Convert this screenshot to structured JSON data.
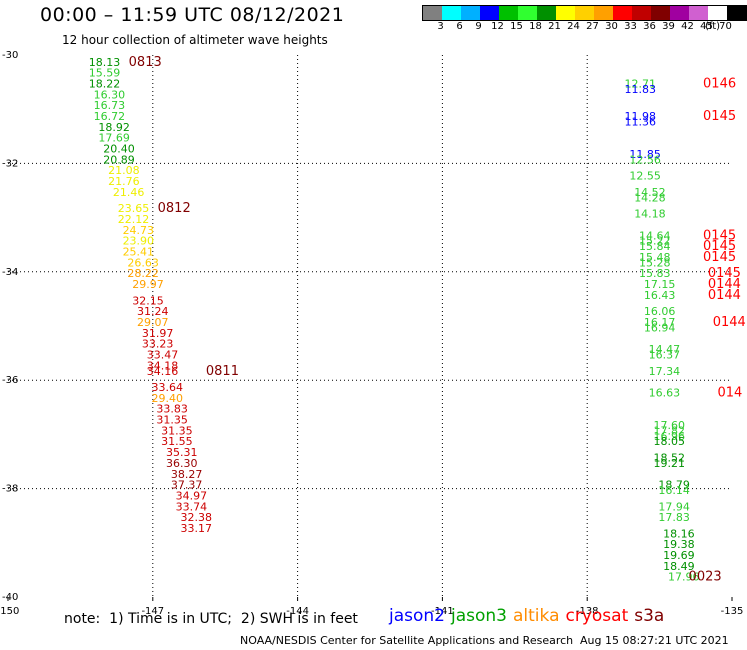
{
  "header": {
    "title": "00:00 – 11:59 UTC 08/12/2021",
    "subtitle": "12 hour collection of altimeter wave heights"
  },
  "colorbar": {
    "colors": [
      "#808080",
      "#00ffff",
      "#00b0ff",
      "#0000ff",
      "#00c000",
      "#30ff30",
      "#009000",
      "#ffff00",
      "#ffd000",
      "#ffa000",
      "#ff0000",
      "#c00000",
      "#800000",
      "#a000a0",
      "#d060d0",
      "#ffffff",
      "#000000"
    ],
    "labels": [
      "3",
      "6",
      "9",
      "12",
      "15",
      "18",
      "21",
      "24",
      "27",
      "30",
      "33",
      "36",
      "39",
      "42",
      "45",
      "70"
    ],
    "unit": "(ft)"
  },
  "footer": {
    "note": "note:  1) Time is in UTC;  2) SWH is in feet",
    "legend": [
      {
        "label": "jason2",
        "color": "#0000ff"
      },
      {
        "label": "jason3",
        "color": "#00a000"
      },
      {
        "label": "altika",
        "color": "#ff8c00"
      },
      {
        "label": "cryosat",
        "color": "#ff0000"
      },
      {
        "label": "s3a",
        "color": "#800000"
      }
    ],
    "credit": "NOAA/NESDIS Center for Satellite Applications and Research",
    "timestamp": "Aug 15 08:27:21 UTC 2021"
  },
  "chart_data": {
    "type": "scatter",
    "title": "00:00 – 11:59 UTC 08/12/2021",
    "subtitle": "12 hour collection of altimeter wave heights",
    "xlim": [
      -150,
      -135
    ],
    "ylim": [
      -40,
      -30
    ],
    "x_ticks": [
      "-150",
      "-147",
      "-144",
      "-141",
      "-138",
      "-135"
    ],
    "y_ticks": [
      "-30",
      "-32",
      "-34",
      "-36",
      "-38",
      "-40"
    ],
    "x_tick_values": [
      -150,
      -147,
      -144,
      -141,
      -138,
      -135
    ],
    "y_tick_values": [
      -30,
      -32,
      -34,
      -36,
      -38,
      -40
    ],
    "grid": true,
    "track_a": [
      {
        "lon": -148.0,
        "lat": -30.2,
        "v": "18.13",
        "c": "#009000"
      },
      {
        "lon": -148.0,
        "lat": -30.4,
        "v": "15.59",
        "c": "#30cc30"
      },
      {
        "lon": -148.0,
        "lat": -30.6,
        "v": "18.22",
        "c": "#009000"
      },
      {
        "lon": -147.9,
        "lat": -30.8,
        "v": "16.30",
        "c": "#30cc30"
      },
      {
        "lon": -147.9,
        "lat": -31.0,
        "v": "16.73",
        "c": "#30cc30"
      },
      {
        "lon": -147.9,
        "lat": -31.2,
        "v": "16.72",
        "c": "#30cc30"
      },
      {
        "lon": -147.8,
        "lat": -31.4,
        "v": "18.92",
        "c": "#009000"
      },
      {
        "lon": -147.8,
        "lat": -31.6,
        "v": "17.69",
        "c": "#30cc30"
      },
      {
        "lon": -147.7,
        "lat": -31.8,
        "v": "20.40",
        "c": "#009000"
      },
      {
        "lon": -147.7,
        "lat": -32.0,
        "v": "20.89",
        "c": "#009000"
      },
      {
        "lon": -147.6,
        "lat": -32.2,
        "v": "21.08",
        "c": "#eeee00"
      },
      {
        "lon": -147.6,
        "lat": -32.4,
        "v": "21.76",
        "c": "#eeee00"
      },
      {
        "lon": -147.5,
        "lat": -32.6,
        "v": "21.46",
        "c": "#eeee00"
      },
      {
        "lon": -147.4,
        "lat": -32.9,
        "v": "23.65",
        "c": "#eeee00"
      },
      {
        "lon": -147.4,
        "lat": -33.1,
        "v": "22.12",
        "c": "#eeee00"
      },
      {
        "lon": -147.3,
        "lat": -33.3,
        "v": "24.73",
        "c": "#ffcc00"
      },
      {
        "lon": -147.3,
        "lat": -33.5,
        "v": "23.90",
        "c": "#eeee00"
      },
      {
        "lon": -147.3,
        "lat": -33.7,
        "v": "25.41",
        "c": "#ffcc00"
      },
      {
        "lon": -147.2,
        "lat": -33.9,
        "v": "26.63",
        "c": "#ffcc00"
      },
      {
        "lon": -147.2,
        "lat": -34.1,
        "v": "28.22",
        "c": "#ffa000"
      },
      {
        "lon": -147.1,
        "lat": -34.3,
        "v": "29.97",
        "c": "#ffa000"
      },
      {
        "lon": -147.1,
        "lat": -34.6,
        "v": "32.15",
        "c": "#cc0000"
      },
      {
        "lon": -147.0,
        "lat": -34.8,
        "v": "31.24",
        "c": "#cc0000"
      },
      {
        "lon": -147.0,
        "lat": -35.0,
        "v": "29.07",
        "c": "#ffa000"
      },
      {
        "lon": -146.9,
        "lat": -35.2,
        "v": "31.97",
        "c": "#cc0000"
      },
      {
        "lon": -146.9,
        "lat": -35.4,
        "v": "33.23",
        "c": "#cc0000"
      },
      {
        "lon": -146.8,
        "lat": -35.6,
        "v": "33.47",
        "c": "#cc0000"
      },
      {
        "lon": -146.8,
        "lat": -35.8,
        "v": "34.18",
        "c": "#cc0000"
      },
      {
        "lon": -146.8,
        "lat": -35.9,
        "v": "34.16",
        "c": "#cc0000"
      },
      {
        "lon": -146.7,
        "lat": -36.2,
        "v": "33.64",
        "c": "#cc0000"
      },
      {
        "lon": -146.7,
        "lat": -36.4,
        "v": "29.40",
        "c": "#ffa000"
      },
      {
        "lon": -146.6,
        "lat": -36.6,
        "v": "33.83",
        "c": "#cc0000"
      },
      {
        "lon": -146.6,
        "lat": -36.8,
        "v": "31.35",
        "c": "#cc0000"
      },
      {
        "lon": -146.5,
        "lat": -37.0,
        "v": "31.35",
        "c": "#cc0000"
      },
      {
        "lon": -146.5,
        "lat": -37.2,
        "v": "31.55",
        "c": "#cc0000"
      },
      {
        "lon": -146.4,
        "lat": -37.4,
        "v": "35.31",
        "c": "#cc0000"
      },
      {
        "lon": -146.4,
        "lat": -37.6,
        "v": "36.30",
        "c": "#990000"
      },
      {
        "lon": -146.3,
        "lat": -37.8,
        "v": "38.27",
        "c": "#990000"
      },
      {
        "lon": -146.3,
        "lat": -38.0,
        "v": "37.37",
        "c": "#990000"
      },
      {
        "lon": -146.2,
        "lat": -38.2,
        "v": "34.97",
        "c": "#cc0000"
      },
      {
        "lon": -146.2,
        "lat": -38.4,
        "v": "33.74",
        "c": "#cc0000"
      },
      {
        "lon": -146.1,
        "lat": -38.6,
        "v": "32.38",
        "c": "#cc0000"
      },
      {
        "lon": -146.1,
        "lat": -38.8,
        "v": "33.17",
        "c": "#cc0000"
      }
    ],
    "track_a_times": [
      {
        "lon": -147.5,
        "lat": -30.2,
        "t": "0813",
        "c": "#800000"
      },
      {
        "lon": -146.9,
        "lat": -32.9,
        "t": "0812",
        "c": "#800000"
      },
      {
        "lon": -145.9,
        "lat": -35.9,
        "t": "0811",
        "c": "#800000"
      }
    ],
    "track_b": [
      {
        "lon": -136.9,
        "lat": -30.6,
        "v": "12.71",
        "c": "#30cc30"
      },
      {
        "lon": -136.9,
        "lat": -30.7,
        "v": "11.83",
        "c": "#0000ff"
      },
      {
        "lon": -136.9,
        "lat": -31.2,
        "v": "11.98",
        "c": "#0000ff"
      },
      {
        "lon": -136.9,
        "lat": -31.3,
        "v": "11.36",
        "c": "#0000ff"
      },
      {
        "lon": -136.8,
        "lat": -31.9,
        "v": "11.85",
        "c": "#0000ff"
      },
      {
        "lon": -136.8,
        "lat": -32.0,
        "v": "12.56",
        "c": "#30cc30"
      },
      {
        "lon": -136.8,
        "lat": -32.3,
        "v": "12.55",
        "c": "#30cc30"
      },
      {
        "lon": -136.7,
        "lat": -32.6,
        "v": "14.52",
        "c": "#30cc30"
      },
      {
        "lon": -136.7,
        "lat": -32.7,
        "v": "14.28",
        "c": "#30cc30"
      },
      {
        "lon": -136.7,
        "lat": -33.0,
        "v": "14.18",
        "c": "#30cc30"
      },
      {
        "lon": -136.6,
        "lat": -33.4,
        "v": "14.64",
        "c": "#30cc30"
      },
      {
        "lon": -136.6,
        "lat": -33.5,
        "v": "15.22",
        "c": "#30cc30"
      },
      {
        "lon": -136.6,
        "lat": -33.6,
        "v": "15.84",
        "c": "#30cc30"
      },
      {
        "lon": -136.6,
        "lat": -33.8,
        "v": "15.48",
        "c": "#30cc30"
      },
      {
        "lon": -136.6,
        "lat": -33.9,
        "v": "15.28",
        "c": "#30cc30"
      },
      {
        "lon": -136.6,
        "lat": -34.1,
        "v": "15.83",
        "c": "#30cc30"
      },
      {
        "lon": -136.5,
        "lat": -34.3,
        "v": "17.15",
        "c": "#30cc30"
      },
      {
        "lon": -136.5,
        "lat": -34.5,
        "v": "16.43",
        "c": "#30cc30"
      },
      {
        "lon": -136.5,
        "lat": -34.8,
        "v": "16.06",
        "c": "#30cc30"
      },
      {
        "lon": -136.5,
        "lat": -35.0,
        "v": "16.17",
        "c": "#30cc30"
      },
      {
        "lon": -136.5,
        "lat": -35.1,
        "v": "16.94",
        "c": "#30cc30"
      },
      {
        "lon": -136.4,
        "lat": -35.5,
        "v": "14.47",
        "c": "#30cc30"
      },
      {
        "lon": -136.4,
        "lat": -35.6,
        "v": "16.37",
        "c": "#30cc30"
      },
      {
        "lon": -136.4,
        "lat": -35.9,
        "v": "17.34",
        "c": "#30cc30"
      },
      {
        "lon": -136.4,
        "lat": -36.3,
        "v": "16.63",
        "c": "#30cc30"
      },
      {
        "lon": -136.3,
        "lat": -36.9,
        "v": "17.60",
        "c": "#30cc30"
      },
      {
        "lon": -136.3,
        "lat": -37.0,
        "v": "17.82",
        "c": "#30cc30"
      },
      {
        "lon": -136.3,
        "lat": -37.1,
        "v": "16.96",
        "c": "#30cc30"
      },
      {
        "lon": -136.3,
        "lat": -37.2,
        "v": "18.05",
        "c": "#009000"
      },
      {
        "lon": -136.3,
        "lat": -37.5,
        "v": "18.52",
        "c": "#009000"
      },
      {
        "lon": -136.3,
        "lat": -37.6,
        "v": "19.21",
        "c": "#009000"
      },
      {
        "lon": -136.2,
        "lat": -38.0,
        "v": "18.79",
        "c": "#009000"
      },
      {
        "lon": -136.2,
        "lat": -38.1,
        "v": "16.14",
        "c": "#30cc30"
      },
      {
        "lon": -136.2,
        "lat": -38.4,
        "v": "17.94",
        "c": "#30cc30"
      },
      {
        "lon": -136.2,
        "lat": -38.6,
        "v": "17.83",
        "c": "#30cc30"
      },
      {
        "lon": -136.1,
        "lat": -38.9,
        "v": "18.16",
        "c": "#009000"
      },
      {
        "lon": -136.1,
        "lat": -39.1,
        "v": "19.38",
        "c": "#009000"
      },
      {
        "lon": -136.1,
        "lat": -39.3,
        "v": "19.69",
        "c": "#009000"
      },
      {
        "lon": -136.1,
        "lat": -39.5,
        "v": "18.49",
        "c": "#009000"
      },
      {
        "lon": -136.0,
        "lat": -39.7,
        "v": "17.96",
        "c": "#30cc30"
      }
    ],
    "track_b_times": [
      {
        "lon": -135.6,
        "lat": -30.6,
        "t": "0146",
        "c": "#ff0000"
      },
      {
        "lon": -135.6,
        "lat": -31.2,
        "t": "0145",
        "c": "#ff0000"
      },
      {
        "lon": -135.6,
        "lat": -33.4,
        "t": "0145",
        "c": "#ff0000"
      },
      {
        "lon": -135.6,
        "lat": -33.6,
        "t": "0145",
        "c": "#ff0000"
      },
      {
        "lon": -135.6,
        "lat": -33.8,
        "t": "0145",
        "c": "#ff0000"
      },
      {
        "lon": -135.5,
        "lat": -34.1,
        "t": "0145",
        "c": "#ff0000"
      },
      {
        "lon": -135.5,
        "lat": -34.3,
        "t": "0144",
        "c": "#ff0000"
      },
      {
        "lon": -135.5,
        "lat": -34.5,
        "t": "0144",
        "c": "#ff0000"
      },
      {
        "lon": -135.4,
        "lat": -35.0,
        "t": "0144",
        "c": "#ff0000"
      },
      {
        "lon": -135.3,
        "lat": -36.3,
        "t": "014",
        "c": "#ff0000"
      },
      {
        "lon": -135.9,
        "lat": -39.7,
        "t": "0023",
        "c": "#800000"
      }
    ]
  }
}
